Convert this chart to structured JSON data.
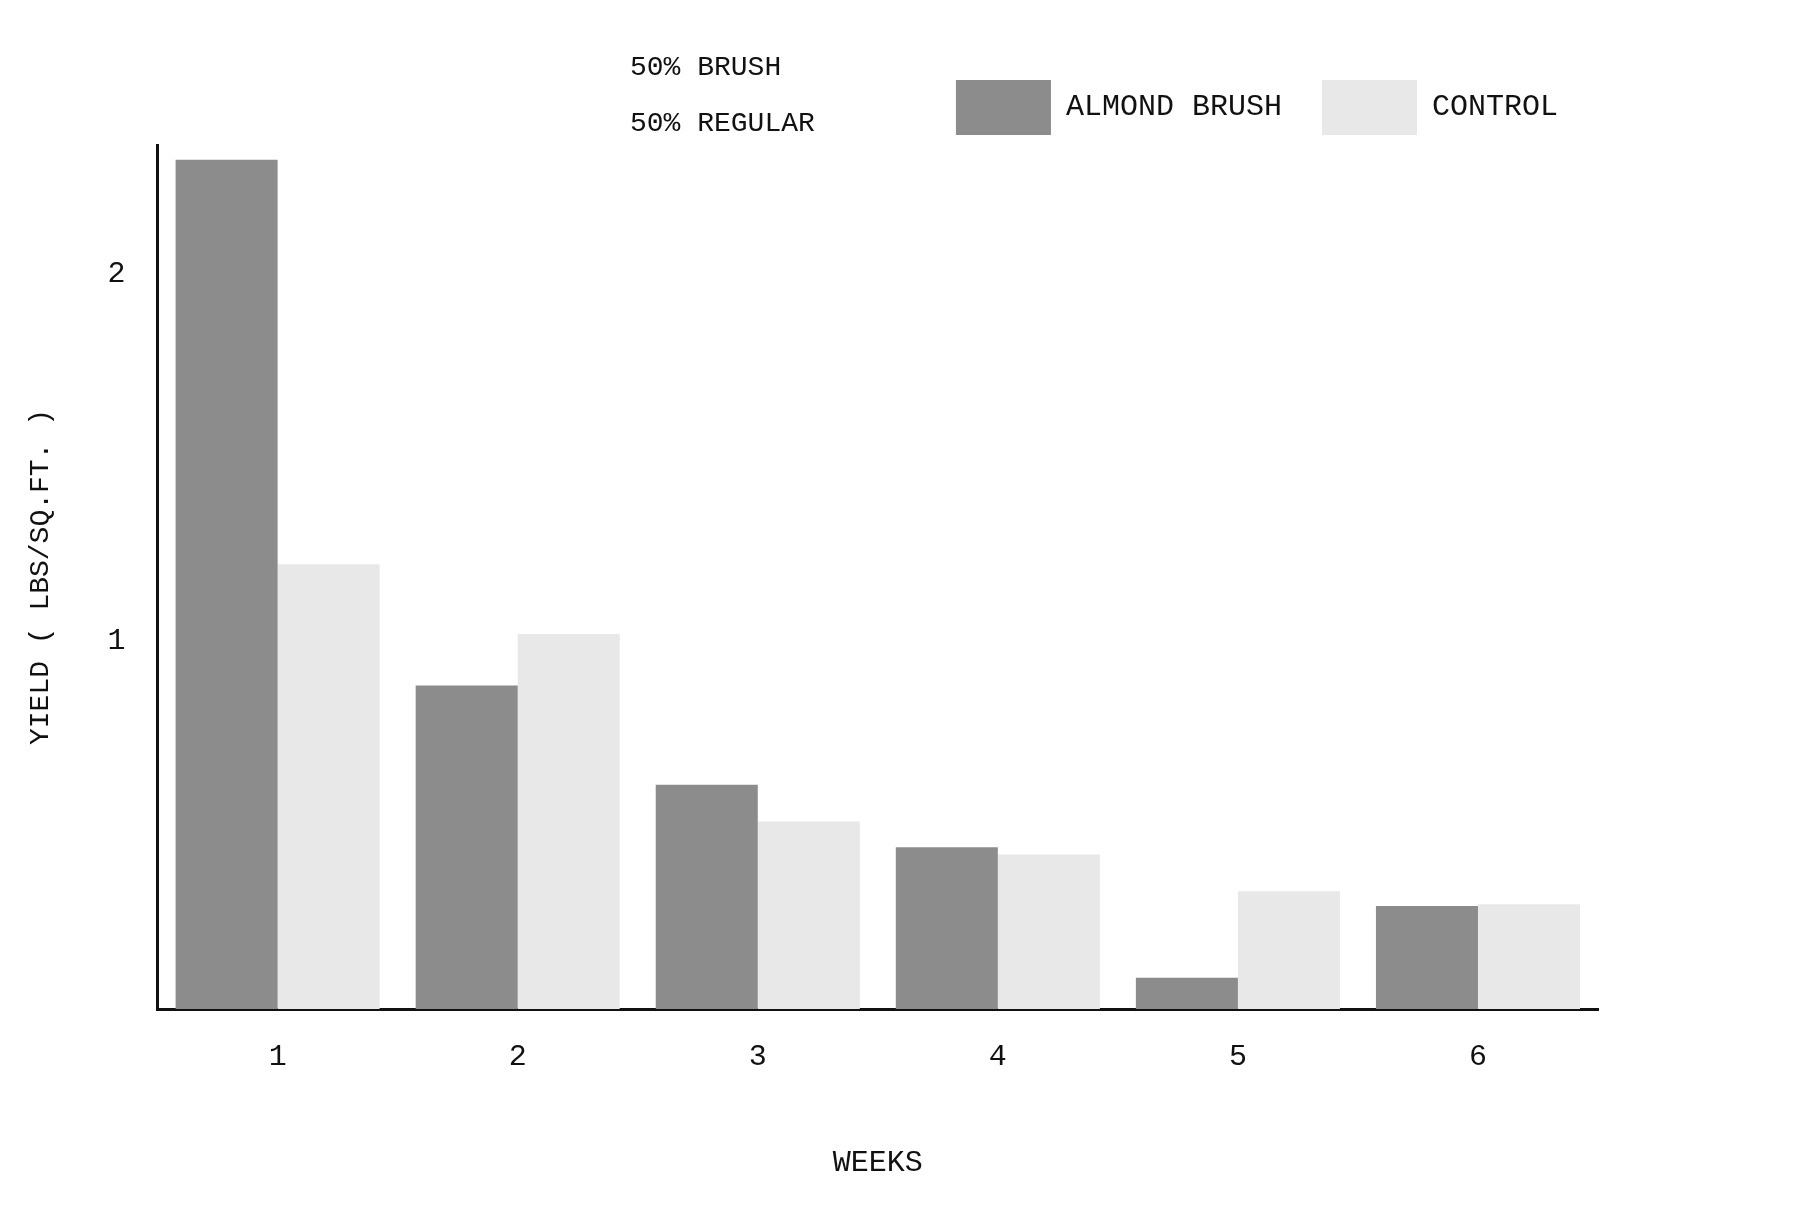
{
  "chart_data": {
    "type": "bar",
    "xlabel": "WEEKS",
    "ylabel": "YIELD ( LBS/SQ.FT. )",
    "categories": [
      "1",
      "2",
      "3",
      "4",
      "5",
      "6"
    ],
    "series": [
      {
        "name": "ALMOND BRUSH",
        "color": "#8c8c8c",
        "values": [
          2.31,
          0.88,
          0.61,
          0.44,
          0.085,
          0.28
        ]
      },
      {
        "name": "CONTROL",
        "color": "#e8e8e8",
        "values": [
          1.21,
          1.02,
          0.51,
          0.42,
          0.32,
          0.285
        ]
      }
    ],
    "ylim": [
      0,
      2.35
    ],
    "yticks": [
      1,
      2
    ],
    "grid": false,
    "legend": "top right",
    "annotations": [
      "50% BRUSH",
      "50% REGULAR"
    ]
  }
}
